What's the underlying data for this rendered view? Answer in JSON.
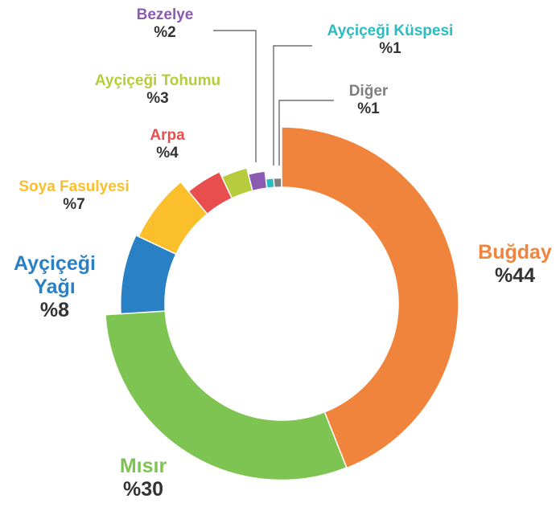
{
  "chart_data": {
    "type": "pie",
    "donut": true,
    "categories": [
      "Buğday",
      "Mısır",
      "Ayçiçeği Yağı",
      "Soya Fasulyesi",
      "Arpa",
      "Ayçiçeği Tohumu",
      "Bezelye",
      "Ayçiçeği Küspesi",
      "Diğer"
    ],
    "values": [
      44,
      30,
      8,
      7,
      4,
      3,
      2,
      1,
      1
    ],
    "value_labels": [
      "%44",
      "%30",
      "%8",
      "%7",
      "%4",
      "%3",
      "%2",
      "%1",
      "%1"
    ],
    "colors": [
      "#f0843c",
      "#7dc452",
      "#2a80c4",
      "#fbbf2c",
      "#e84e4e",
      "#b7cc3c",
      "#8a5bb0",
      "#2bbcc0",
      "#7f7f7f"
    ]
  }
}
